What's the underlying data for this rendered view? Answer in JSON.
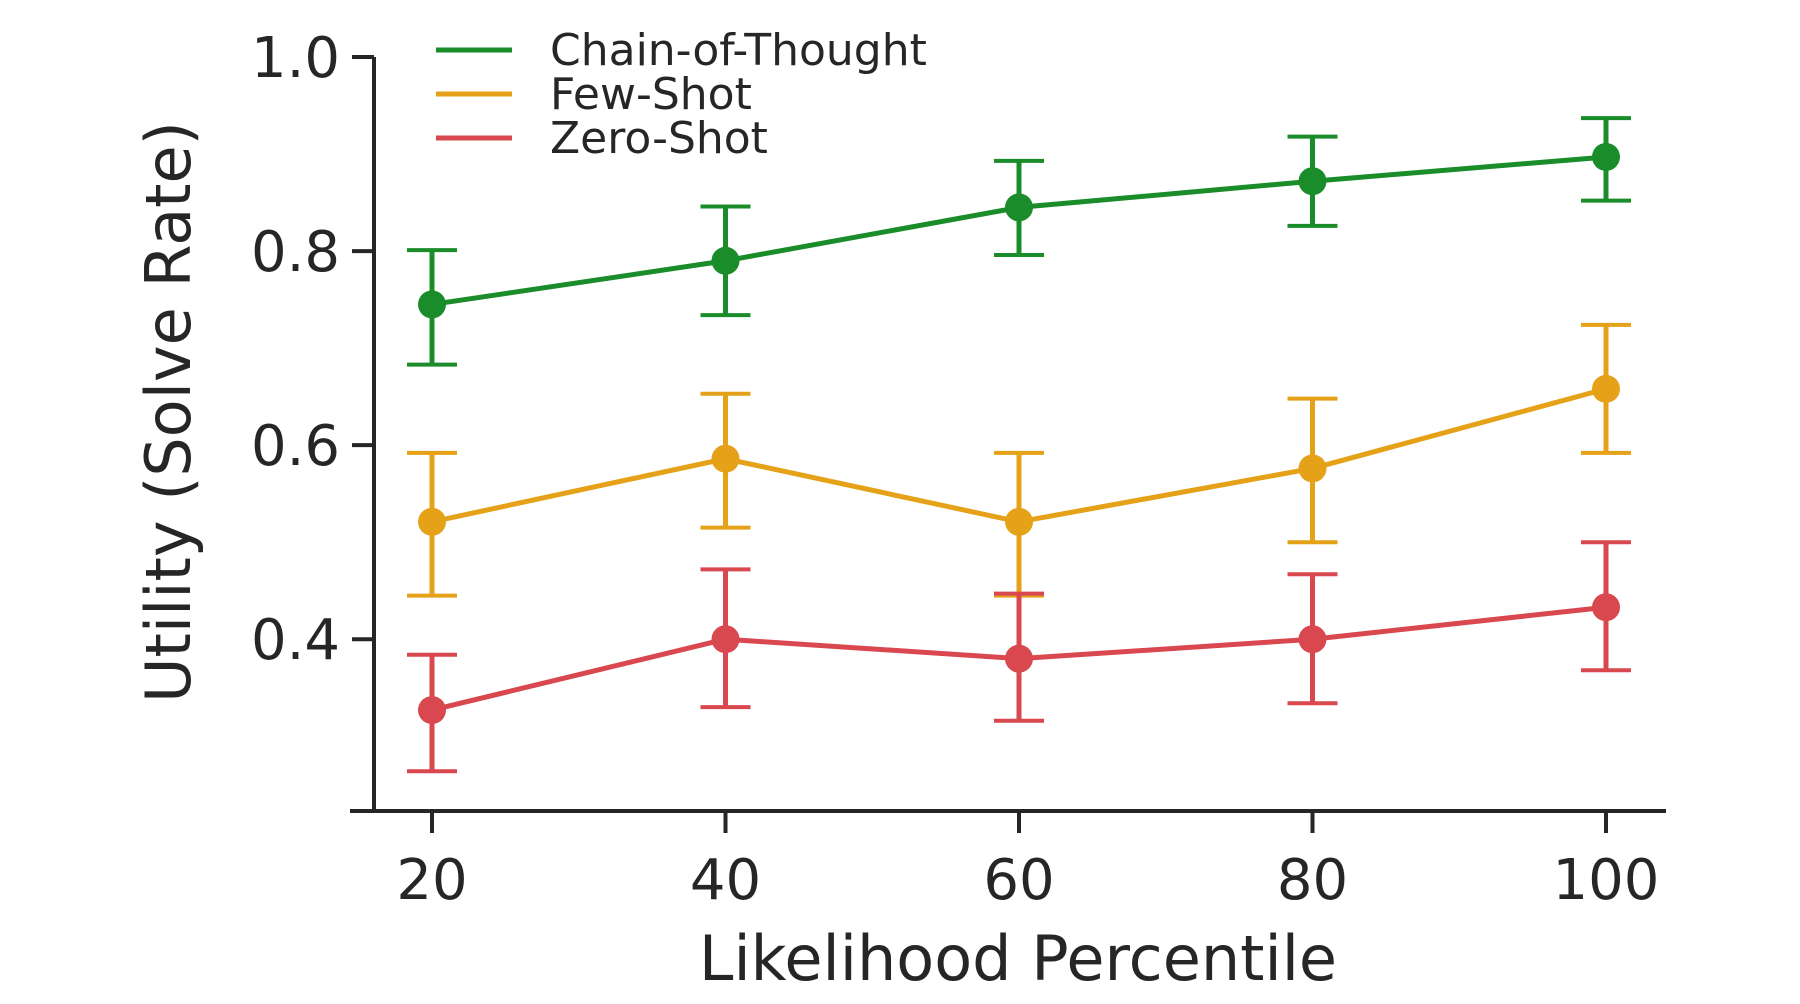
{
  "chart_data": {
    "type": "line",
    "title": "",
    "xlabel": "Likelihood Percentile",
    "ylabel": "Utility (Solve Rate)",
    "x": [
      20,
      40,
      60,
      80,
      100
    ],
    "x_ticks": [
      "20",
      "40",
      "60",
      "80",
      "100"
    ],
    "xlim": [
      16,
      104
    ],
    "y_ticks": [
      "0.4",
      "0.6",
      "0.8",
      "1.0"
    ],
    "y_tick_values": [
      0.4,
      0.6,
      0.8,
      1.0
    ],
    "ylim": [
      0.223,
      1.0
    ],
    "grid": false,
    "legend_position": "top-left",
    "series": [
      {
        "name": "Chain-of-Thought",
        "color": "#1a8c2a",
        "values": [
          0.745,
          0.79,
          0.845,
          0.872,
          0.897
        ],
        "err_low": [
          0.683,
          0.734,
          0.796,
          0.826,
          0.852
        ],
        "err_high": [
          0.801,
          0.846,
          0.893,
          0.918,
          0.937
        ]
      },
      {
        "name": "Few-Shot",
        "color": "#e5a118",
        "values": [
          0.521,
          0.586,
          0.521,
          0.576,
          0.658
        ],
        "err_low": [
          0.445,
          0.515,
          0.445,
          0.5,
          0.592
        ],
        "err_high": [
          0.592,
          0.653,
          0.592,
          0.648,
          0.724
        ]
      },
      {
        "name": "Zero-Shot",
        "color": "#d9474f",
        "values": [
          0.327,
          0.4,
          0.38,
          0.4,
          0.433
        ],
        "err_low": [
          0.264,
          0.33,
          0.316,
          0.334,
          0.368
        ],
        "err_high": [
          0.384,
          0.472,
          0.447,
          0.467,
          0.5
        ]
      }
    ]
  }
}
